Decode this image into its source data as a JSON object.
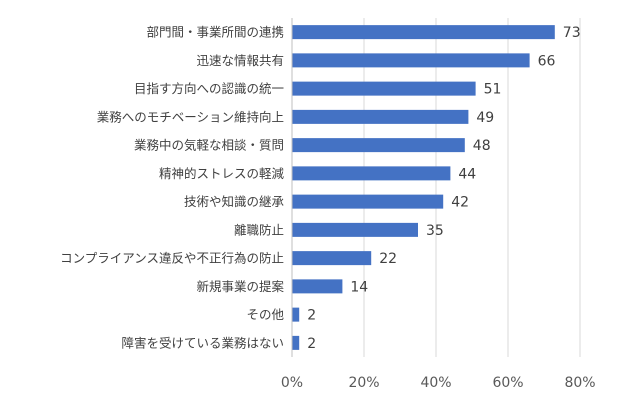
{
  "chart_data": {
    "type": "bar",
    "orientation": "horizontal",
    "categories": [
      "部門間・事業所間の連携",
      "迅速な情報共有",
      "目指す方向への認識の統一",
      "業務へのモチベーション維持向上",
      "業務中の気軽な相談・質問",
      "精神的ストレスの軽減",
      "技術や知識の継承",
      "離職防止",
      "コンプライアンス違反や不正行為の防止",
      "新規事業の提案",
      "その他",
      "障害を受けている業務はない"
    ],
    "values": [
      73,
      66,
      51,
      49,
      48,
      44,
      42,
      35,
      22,
      14,
      2,
      2
    ],
    "data_labels": [
      "73",
      "66",
      "51",
      "49",
      "48",
      "44",
      "42",
      "35",
      "22",
      "14",
      "2",
      "2"
    ],
    "x_ticks": [
      "0%",
      "20%",
      "40%",
      "60%",
      "80%"
    ],
    "xlim": [
      0,
      80
    ],
    "grid": true,
    "bar_color": "#4472c4",
    "title": "",
    "xlabel": "",
    "ylabel": ""
  }
}
